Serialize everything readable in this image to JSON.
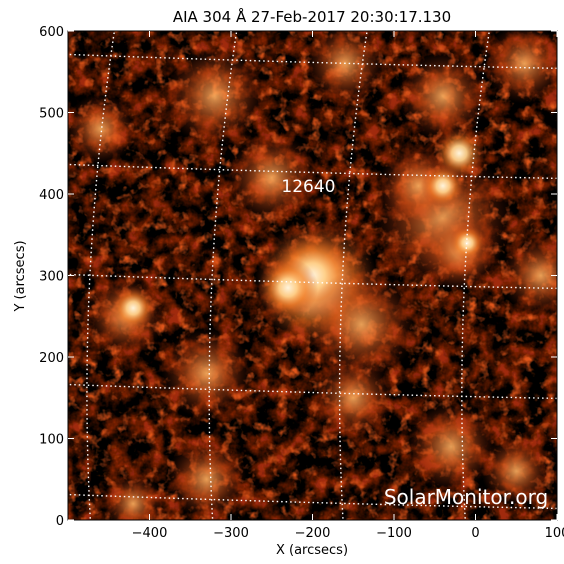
{
  "title": "AIA 304 Å 27-Feb-2017 20:30:17.130",
  "x_axis": {
    "label": "X (arcsecs)",
    "ticks": [
      "−400",
      "−300",
      "−200",
      "−100",
      "0",
      "100"
    ],
    "tick_values": [
      -400,
      -300,
      -200,
      -100,
      0,
      100
    ],
    "range": [
      -500,
      100
    ]
  },
  "y_axis": {
    "label": "Y (arcsecs)",
    "ticks": [
      "0",
      "100",
      "200",
      "300",
      "400",
      "500",
      "600"
    ],
    "tick_values": [
      0,
      100,
      200,
      300,
      400,
      500,
      600
    ],
    "range": [
      0,
      600
    ]
  },
  "active_region": {
    "label": "12640",
    "x": -205,
    "y": 410
  },
  "watermark": "SolarMonitor.org",
  "colors": {
    "background": "#000000",
    "plasma_mid": "#b33a10",
    "plasma_bright": "#ffd9a0",
    "grid": "#ffffff",
    "axis_text": "#000000"
  }
}
